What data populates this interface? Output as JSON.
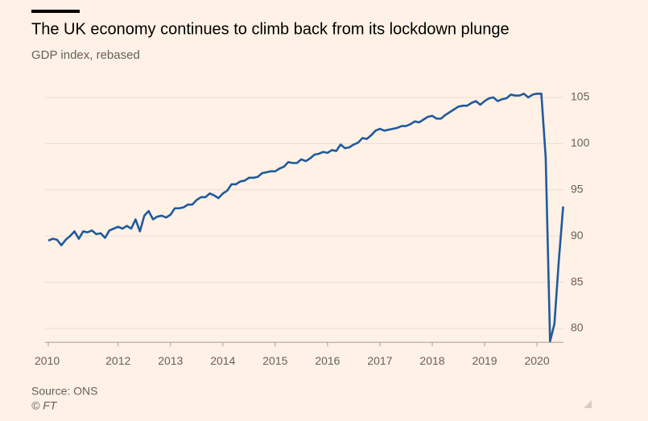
{
  "chart_data": {
    "type": "line",
    "title": "The UK economy continues to climb back from its lockdown plunge",
    "subtitle": "GDP index, rebased",
    "source": "Source: ONS",
    "credit": "© FT",
    "categories": [
      "2010",
      null,
      null,
      null,
      null,
      null,
      null,
      null,
      null,
      null,
      null,
      null,
      null,
      null,
      null,
      null,
      "2012",
      null,
      null,
      null,
      null,
      null,
      null,
      null,
      null,
      null,
      null,
      null,
      "2013",
      null,
      null,
      null,
      null,
      null,
      null,
      null,
      null,
      null,
      null,
      null,
      "2014",
      null,
      null,
      null,
      null,
      null,
      null,
      null,
      null,
      null,
      null,
      null,
      "2015",
      null,
      null,
      null,
      null,
      null,
      null,
      null,
      null,
      null,
      null,
      null,
      "2016",
      null,
      null,
      null,
      null,
      null,
      null,
      null,
      null,
      null,
      null,
      null,
      "2017",
      null,
      null,
      null,
      null,
      null,
      null,
      null,
      null,
      null,
      null,
      null,
      "2018",
      null,
      null,
      null,
      null,
      null,
      null,
      null,
      null,
      null,
      null,
      null,
      "2019",
      null,
      null,
      null,
      null,
      null,
      null,
      null,
      null,
      null,
      null,
      null,
      "2020",
      null,
      null,
      null,
      null,
      null,
      null
    ],
    "series": [
      {
        "name": "GDP index",
        "color": "#1f5a9e",
        "values": [
          89.5,
          89.7,
          89.6,
          89.0,
          89.6,
          90.0,
          90.5,
          89.7,
          90.5,
          90.4,
          90.6,
          90.2,
          90.3,
          89.8,
          90.6,
          90.8,
          91.0,
          90.8,
          91.1,
          90.8,
          91.8,
          90.5,
          92.2,
          92.7,
          91.8,
          92.1,
          92.2,
          92.0,
          92.3,
          93.0,
          93.0,
          93.1,
          93.4,
          93.4,
          93.9,
          94.2,
          94.2,
          94.6,
          94.4,
          94.1,
          94.6,
          94.9,
          95.6,
          95.6,
          95.9,
          96.0,
          96.3,
          96.3,
          96.4,
          96.8,
          96.9,
          97.0,
          97.0,
          97.3,
          97.5,
          98.0,
          97.9,
          97.9,
          98.3,
          98.1,
          98.4,
          98.8,
          98.9,
          99.1,
          99.0,
          99.3,
          99.2,
          99.9,
          99.5,
          99.6,
          99.9,
          100.1,
          100.6,
          100.5,
          100.9,
          101.4,
          101.6,
          101.4,
          101.5,
          101.6,
          101.7,
          101.9,
          101.9,
          102.1,
          102.4,
          102.3,
          102.6,
          102.9,
          103.0,
          102.7,
          102.7,
          103.1,
          103.4,
          103.7,
          104.0,
          104.1,
          104.1,
          104.4,
          104.6,
          104.2,
          104.6,
          104.9,
          105.0,
          104.6,
          104.8,
          104.9,
          105.3,
          105.2,
          105.2,
          105.4,
          105.0,
          105.3,
          105.4,
          105.4,
          98.5,
          78.6,
          80.5,
          87.3,
          93.2
        ]
      }
    ],
    "ylim": [
      78.5,
      106
    ],
    "yticks": [
      80,
      85,
      90,
      95,
      100,
      105
    ],
    "grid": true
  }
}
